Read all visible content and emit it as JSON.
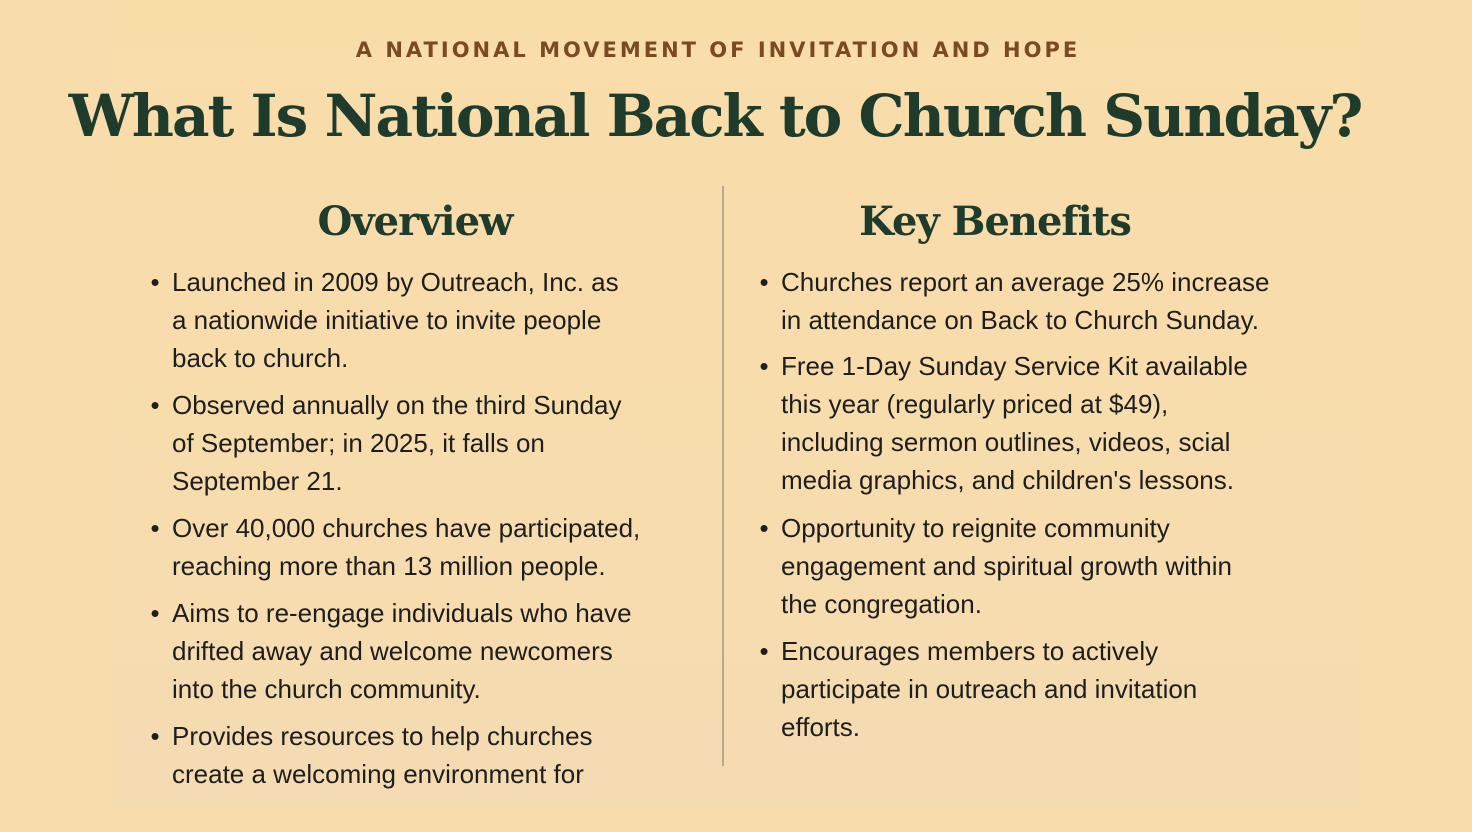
{
  "eyebrow": "A NATIONAL MOVEMENT OF INVITATION AND HOPE",
  "title": "What Is National Back to Church Sunday?",
  "overview": {
    "heading": "Overview",
    "items": [
      {
        "lines": [
          "Launched in 2009 by Outreach, Inc. as",
          "a nationwide initiative to invite people",
          "back to church."
        ]
      },
      {
        "lines": [
          "Observed annually on the third Sunday",
          "of September; in 2025, it falls on",
          "September 21."
        ]
      },
      {
        "lines": [
          "Over 40,000 churches have participated,",
          "reaching more than 13 million people."
        ]
      },
      {
        "lines": [
          "Aims to re-engage individuals who have",
          "drifted away and welcome newcomers",
          "into the church community."
        ]
      },
      {
        "lines": [
          "Provides resources to help churches",
          "create a welcoming environment for"
        ]
      }
    ]
  },
  "benefits": {
    "heading": "Key Benefits",
    "items": [
      {
        "lines": [
          "Churches report an average 25% increase",
          "in attendance on Back to Church Sunday."
        ]
      },
      {
        "lines": [
          "Free 1-Day Sunday Service Kit available",
          "this year (regularly priced at $49),",
          "including sermon outlines, videos, scial",
          "media graphics, and children's lessons."
        ]
      },
      {
        "lines": [
          "Opportunity to reignite community",
          "engagement and spiritual growth within",
          "the congregation."
        ]
      },
      {
        "lines": [
          "Encourages members to actively",
          "participate in outreach and invitation",
          "efforts."
        ]
      }
    ]
  },
  "bullet_glyph": "•"
}
